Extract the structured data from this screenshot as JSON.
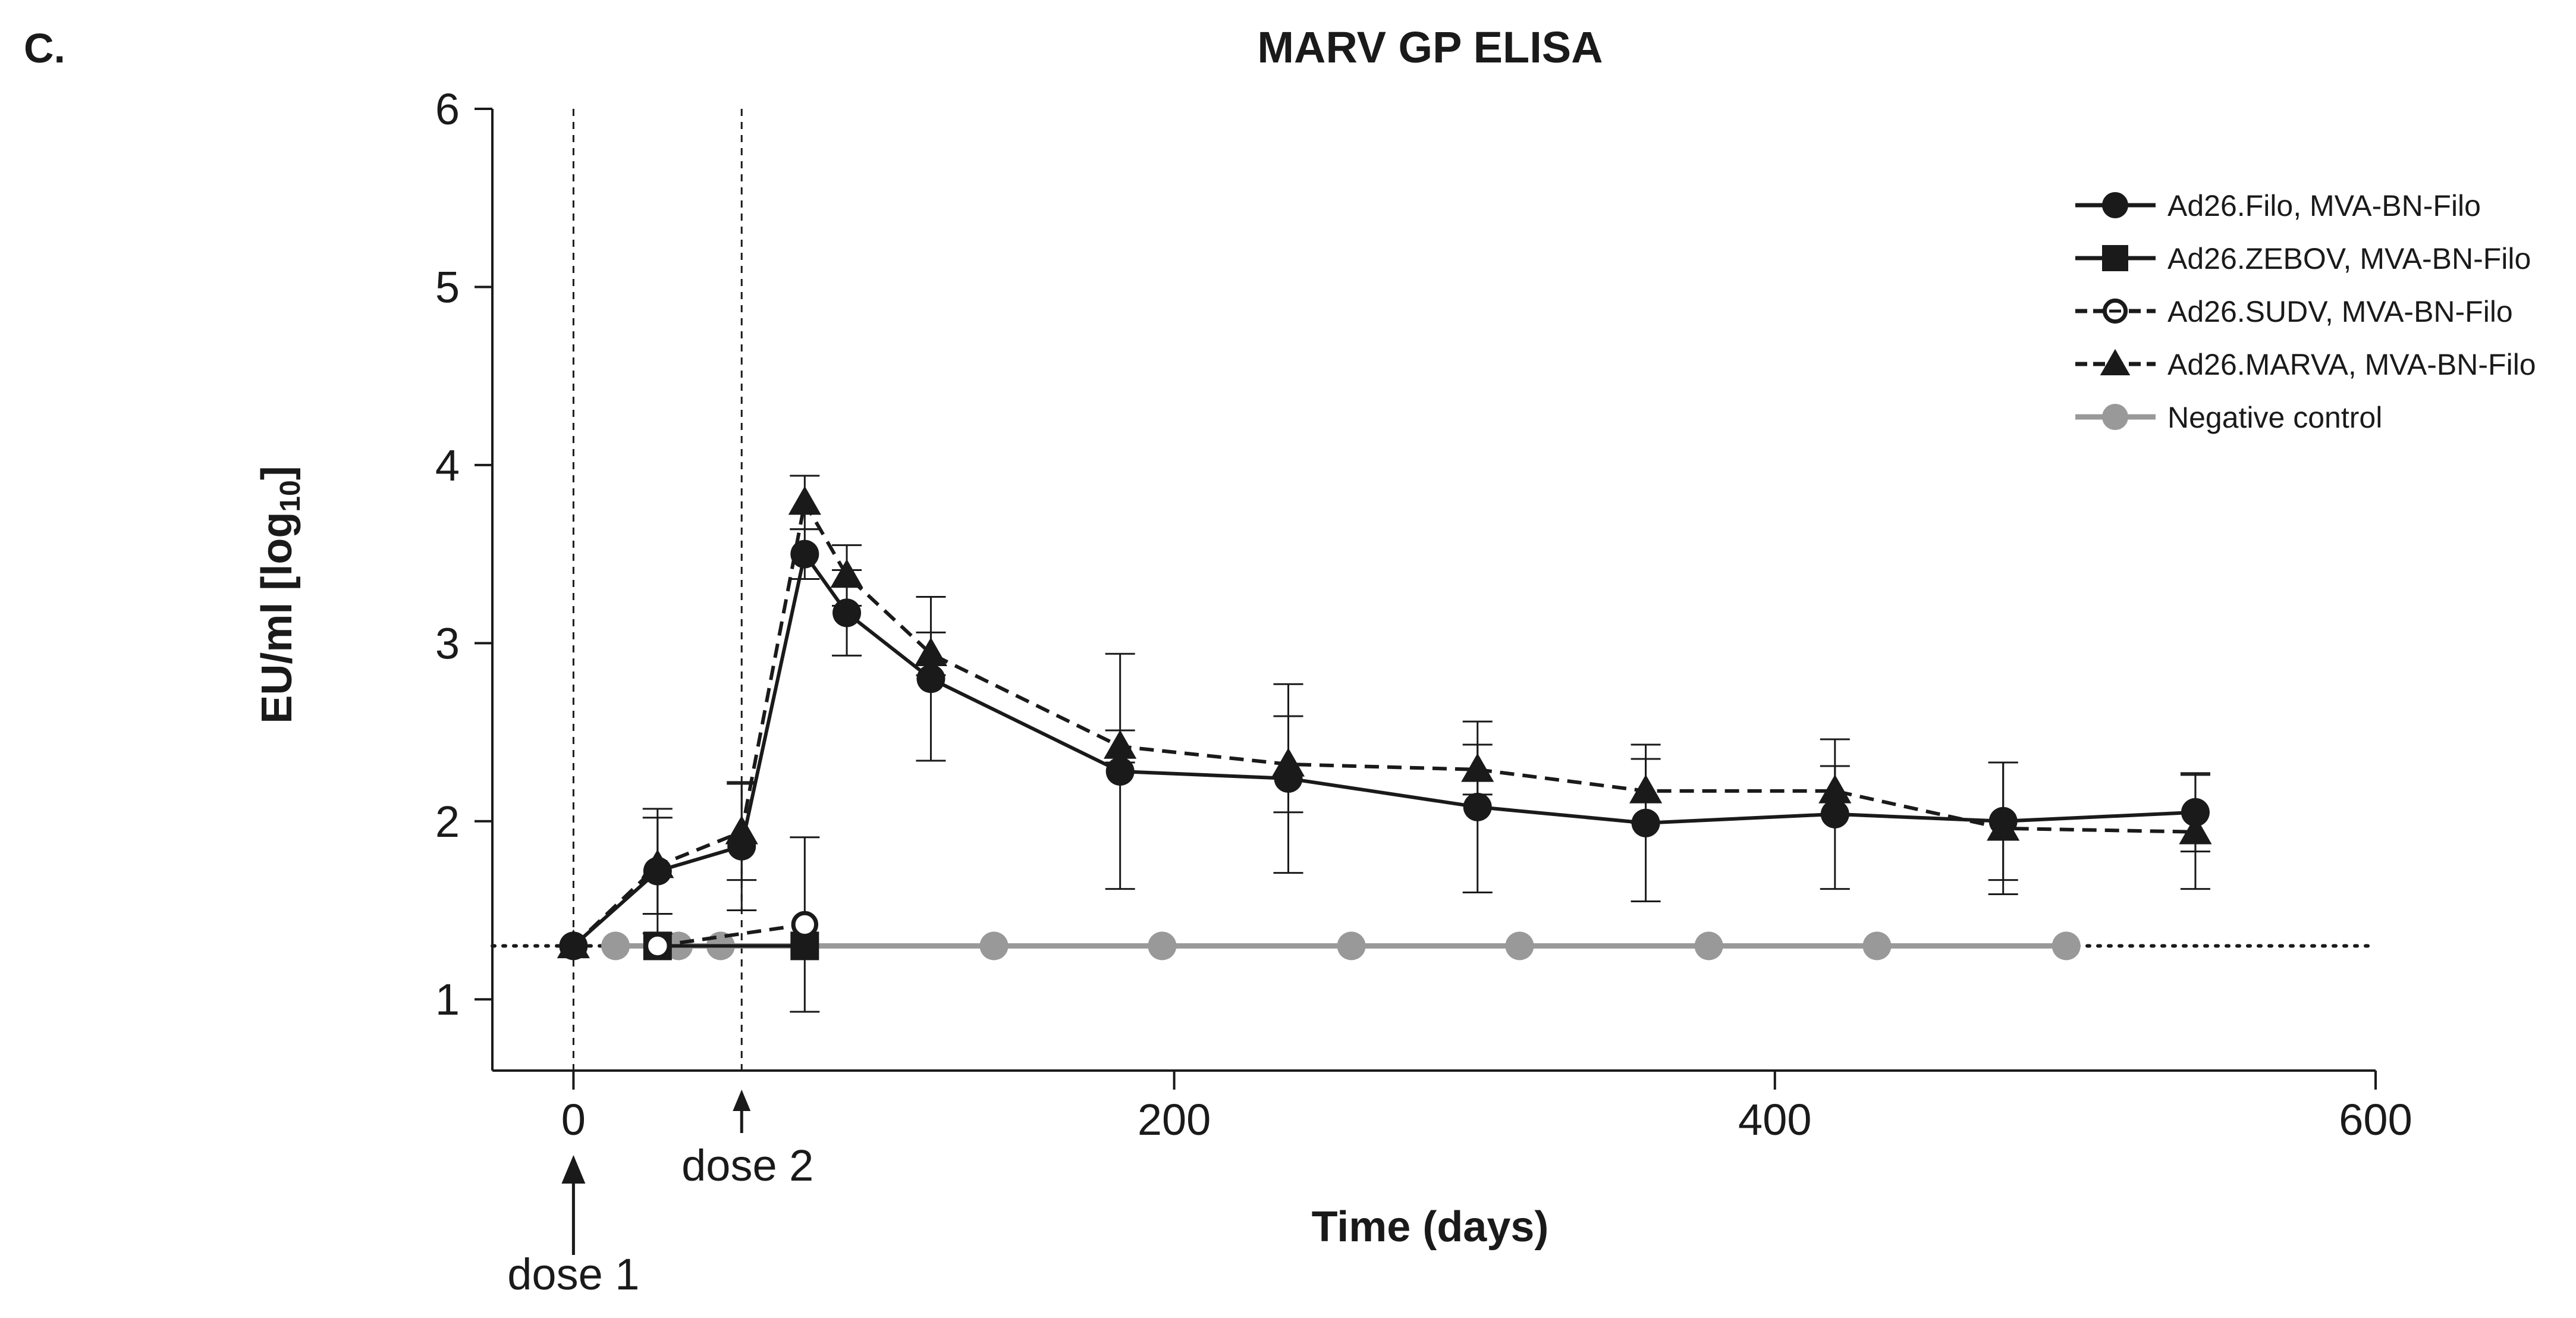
{
  "panel_label": "C.",
  "chart_data": {
    "type": "line",
    "title": "MARV GP ELISA",
    "xlabel": "Time (days)",
    "ylabel": "EU/ml [log",
    "ylabel_sub": "10",
    "ylabel_end": "]",
    "xlim": [
      -27,
      600
    ],
    "ylim": [
      0.6,
      6
    ],
    "xticks": [
      0,
      200,
      400,
      600
    ],
    "xtick_labels": [
      "0",
      "200",
      "400",
      "600"
    ],
    "yticks": [
      1,
      2,
      3,
      4,
      5,
      6
    ],
    "ytick_labels": [
      "1",
      "2",
      "3",
      "4",
      "5",
      "6"
    ],
    "lloq": 1.3,
    "doses": [
      {
        "label": "dose 1",
        "day": 0
      },
      {
        "label": "dose 2",
        "day": 56
      }
    ],
    "legend_position": "top-right",
    "series": [
      {
        "name": "Ad26.Filo, MVA-BN-Filo",
        "marker": "circle",
        "fill": "filled",
        "dash": "solid",
        "color": "#1a1a1a",
        "x": [
          0,
          28,
          56,
          77,
          91,
          119,
          182,
          238,
          301,
          357,
          420,
          476,
          540
        ],
        "y": [
          1.3,
          1.72,
          1.86,
          3.5,
          3.17,
          2.8,
          2.28,
          2.24,
          2.08,
          1.99,
          2.04,
          2.0,
          2.05
        ],
        "err": [
          0,
          0.35,
          0.36,
          0.14,
          0.24,
          0.46,
          0.66,
          0.53,
          0.48,
          0.44,
          0.42,
          0.33,
          0.22
        ]
      },
      {
        "name": "Ad26.ZEBOV, MVA-BN-Filo",
        "marker": "square",
        "fill": "filled",
        "dash": "solid",
        "color": "#1a1a1a",
        "x": [
          28,
          77
        ],
        "y": [
          1.3,
          1.3
        ],
        "err": [
          0,
          0
        ]
      },
      {
        "name": "Ad26.SUDV, MVA-BN-Filo",
        "marker": "circle",
        "fill": "open",
        "dash": "dashed",
        "color": "#1a1a1a",
        "x": [
          28,
          77
        ],
        "y": [
          1.3,
          1.42
        ],
        "err": [
          0,
          0.49
        ]
      },
      {
        "name": "Ad26.MARVA, MVA-BN-Filo",
        "marker": "triangle",
        "fill": "filled",
        "dash": "dashed",
        "color": "#1a1a1a",
        "x": [
          0,
          28,
          56,
          77,
          91,
          119,
          182,
          238,
          301,
          357,
          420,
          476,
          540
        ],
        "y": [
          1.3,
          1.75,
          1.94,
          3.79,
          3.38,
          2.94,
          2.42,
          2.32,
          2.29,
          2.17,
          2.17,
          1.96,
          1.94
        ],
        "err": [
          0,
          0.27,
          0.27,
          0.15,
          0.17,
          0.12,
          0.09,
          0.27,
          0.14,
          0.18,
          0.14,
          0.37,
          0.32
        ]
      },
      {
        "name": "Negative control",
        "marker": "circle",
        "fill": "filled",
        "dash": "solid",
        "color": "#999999",
        "x": [
          14,
          35,
          49,
          140,
          196,
          259,
          315,
          378,
          434,
          497
        ],
        "y": [
          1.3,
          1.3,
          1.3,
          1.3,
          1.3,
          1.3,
          1.3,
          1.3,
          1.3,
          1.3
        ],
        "err": [
          0,
          0,
          0,
          0,
          0,
          0,
          0,
          0,
          0,
          0
        ]
      }
    ]
  }
}
